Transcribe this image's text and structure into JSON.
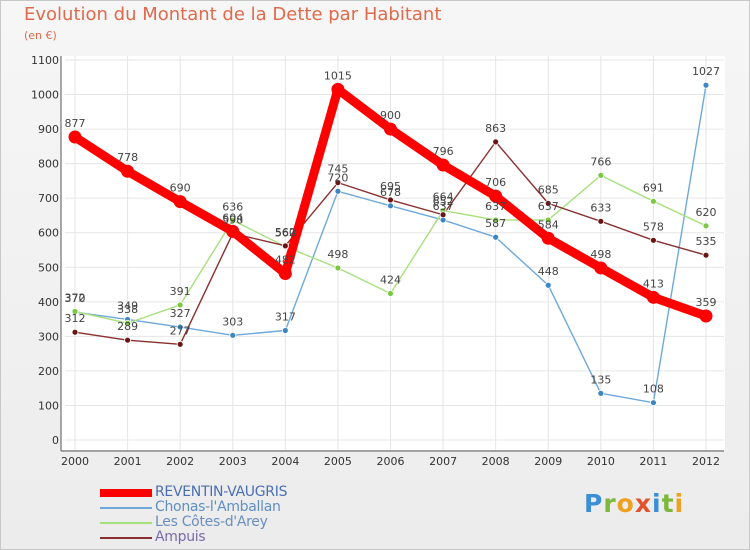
{
  "title": "Evolution du Montant de la Dette par Habitant",
  "unit_label": "(en €)",
  "brand": {
    "letters": [
      {
        "char": "P",
        "color": "#3a8fd6"
      },
      {
        "char": "r",
        "color": "#7db83a"
      },
      {
        "char": "o",
        "color": "#f0a020"
      },
      {
        "char": "x",
        "color": "#e0532c"
      },
      {
        "char": "i",
        "color": "#3a8fd6"
      },
      {
        "char": "t",
        "color": "#7db83a"
      },
      {
        "char": "i",
        "color": "#f0a020"
      }
    ]
  },
  "chart_data": {
    "type": "line",
    "title": "Evolution du Montant de la Dette par Habitant",
    "ylabel": "(en €)",
    "xlabel": "",
    "ylim": [
      0,
      1100
    ],
    "yticks": [
      0,
      100,
      200,
      300,
      400,
      500,
      600,
      700,
      800,
      900,
      1000,
      1100
    ],
    "x": [
      "2000",
      "2001",
      "2002",
      "2003",
      "2004",
      "2005",
      "2006",
      "2007",
      "2008",
      "2009",
      "2010",
      "2011",
      "2012"
    ],
    "grid": true,
    "legend_position": "bottom-left",
    "series": [
      {
        "name": "REVENTIN-VAUGRIS",
        "color": "#ff0000",
        "marker": "#ff0000",
        "width": 9,
        "values": [
          877,
          778,
          690,
          604,
          482,
          1015,
          900,
          796,
          706,
          584,
          498,
          413,
          359
        ]
      },
      {
        "name": "Chonas-l'Amballan",
        "color": "#6fa8dc",
        "marker": "#3d86c6",
        "width": 1.4,
        "values": [
          370,
          349,
          327,
          303,
          317,
          720,
          678,
          637,
          587,
          448,
          135,
          108,
          1027
        ]
      },
      {
        "name": "Les Côtes-d'Arey",
        "color": "#a8e07c",
        "marker": "#7bc843",
        "width": 1.4,
        "values": [
          372,
          338,
          391,
          636,
          560,
          498,
          424,
          664,
          637,
          637,
          766,
          691,
          620
        ]
      },
      {
        "name": "Ampuis",
        "color": "#8a2f2f",
        "marker": "#6b1414",
        "width": 1.4,
        "values": [
          312,
          289,
          277,
          598,
          562,
          745,
          695,
          652,
          863,
          685,
          633,
          578,
          535
        ]
      }
    ]
  }
}
